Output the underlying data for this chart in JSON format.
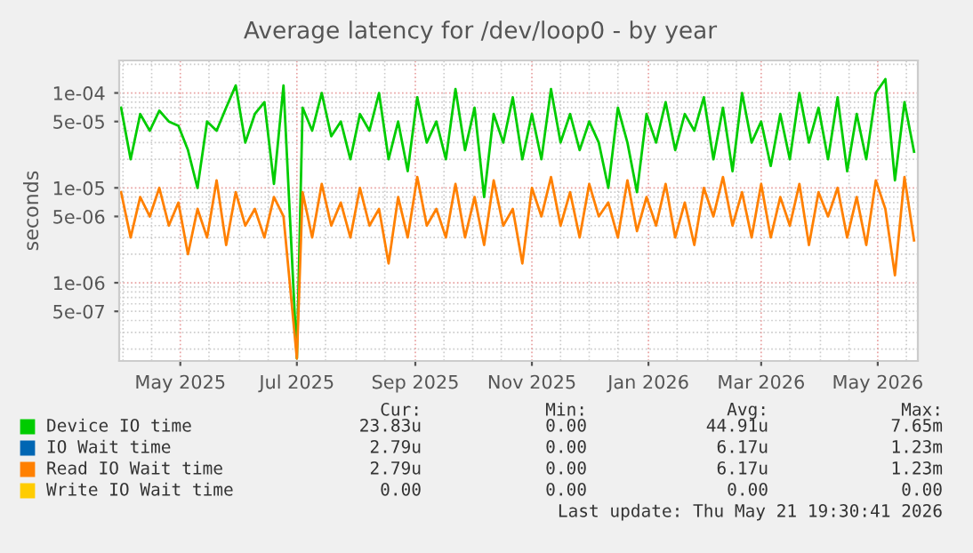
{
  "chart_data": {
    "type": "line",
    "title": "Average latency for /dev/loop0 - by year",
    "ylabel": "seconds",
    "log": "y",
    "grid": true,
    "legend": "bottom",
    "x": [
      "2025-03-31",
      "2025-04-05",
      "2025-04-10",
      "2025-04-15",
      "2025-04-20",
      "2025-04-25",
      "2025-04-30",
      "2025-05-05",
      "2025-05-10",
      "2025-05-15",
      "2025-05-20",
      "2025-05-25",
      "2025-05-30",
      "2025-06-04",
      "2025-06-09",
      "2025-06-14",
      "2025-06-19",
      "2025-06-24",
      "2025-07-01",
      "2025-07-04",
      "2025-07-09",
      "2025-07-14",
      "2025-07-19",
      "2025-07-24",
      "2025-07-29",
      "2025-08-03",
      "2025-08-08",
      "2025-08-13",
      "2025-08-18",
      "2025-08-23",
      "2025-08-28",
      "2025-09-02",
      "2025-09-07",
      "2025-09-12",
      "2025-09-17",
      "2025-09-22",
      "2025-09-27",
      "2025-10-02",
      "2025-10-07",
      "2025-10-12",
      "2025-10-17",
      "2025-10-22",
      "2025-10-27",
      "2025-11-01",
      "2025-11-06",
      "2025-11-11",
      "2025-11-16",
      "2025-11-21",
      "2025-11-26",
      "2025-12-01",
      "2025-12-06",
      "2025-12-11",
      "2025-12-16",
      "2025-12-21",
      "2025-12-26",
      "2025-12-31",
      "2026-01-05",
      "2026-01-10",
      "2026-01-15",
      "2026-01-20",
      "2026-01-25",
      "2026-01-30",
      "2026-02-04",
      "2026-02-09",
      "2026-02-14",
      "2026-02-19",
      "2026-02-24",
      "2026-03-01",
      "2026-03-06",
      "2026-03-11",
      "2026-03-16",
      "2026-03-21",
      "2026-03-26",
      "2026-03-31",
      "2026-04-05",
      "2026-04-10",
      "2026-04-15",
      "2026-04-20",
      "2026-04-25",
      "2026-04-30",
      "2026-05-05",
      "2026-05-10",
      "2026-05-15",
      "2026-05-20"
    ],
    "series": [
      {
        "name": "Device IO time",
        "color": "#00cc00",
        "values": [
          7e-05,
          2e-05,
          6e-05,
          4e-05,
          6.5e-05,
          5e-05,
          4.5e-05,
          2.5e-05,
          1e-05,
          5e-05,
          4e-05,
          7e-05,
          0.00012,
          3e-05,
          6e-05,
          8e-05,
          1.1e-05,
          0.00012,
          1.6e-07,
          7e-05,
          4e-05,
          0.0001,
          3.5e-05,
          5e-05,
          2e-05,
          6e-05,
          4e-05,
          0.0001,
          2e-05,
          5e-05,
          1.5e-05,
          9e-05,
          3e-05,
          5e-05,
          2e-05,
          0.00011,
          2.5e-05,
          7e-05,
          8e-06,
          6e-05,
          3e-05,
          9e-05,
          2e-05,
          6e-05,
          2e-05,
          0.00011,
          3e-05,
          6e-05,
          2.5e-05,
          5e-05,
          3e-05,
          1e-05,
          7e-05,
          3e-05,
          9e-06,
          6e-05,
          3e-05,
          8e-05,
          2.5e-05,
          6e-05,
          4e-05,
          9e-05,
          2e-05,
          7e-05,
          1.5e-05,
          0.0001,
          3e-05,
          5e-05,
          1.7e-05,
          6e-05,
          2e-05,
          0.0001,
          3e-05,
          7e-05,
          2e-05,
          9e-05,
          1.5e-05,
          6e-05,
          2e-05,
          0.0001,
          0.00014,
          1.2e-05,
          8e-05,
          2.4e-05
        ]
      },
      {
        "name": "IO Wait time",
        "color": "#0066b3",
        "values": [
          null,
          null,
          null,
          null,
          null,
          null,
          null,
          null,
          null,
          null,
          null,
          null,
          null,
          null,
          null,
          null,
          null,
          null,
          null,
          null,
          null,
          null,
          null,
          null,
          null,
          null,
          null,
          null,
          null,
          null,
          null,
          null,
          null,
          null,
          null,
          null,
          null,
          null,
          null,
          null,
          null,
          null,
          null,
          null,
          null,
          null,
          null,
          null,
          null,
          null,
          null,
          null,
          null,
          null,
          null,
          null,
          null,
          null,
          null,
          null,
          null,
          null,
          null,
          null,
          null,
          null,
          null,
          null,
          null,
          null,
          null,
          null,
          null,
          null,
          null,
          null,
          null,
          null,
          null,
          null,
          null,
          null,
          null,
          null
        ]
      },
      {
        "name": "Read IO Wait time",
        "color": "#ff8000",
        "values": [
          9e-06,
          3e-06,
          8e-06,
          5e-06,
          1e-05,
          4e-06,
          7e-06,
          2e-06,
          6e-06,
          3e-06,
          1.2e-05,
          2.5e-06,
          9e-06,
          4e-06,
          6e-06,
          3e-06,
          8e-06,
          5e-06,
          1.6e-07,
          9e-06,
          3e-06,
          1.1e-05,
          4e-06,
          7e-06,
          3e-06,
          1e-05,
          4e-06,
          6e-06,
          1.6e-06,
          8e-06,
          3e-06,
          1.3e-05,
          4e-06,
          6e-06,
          3e-06,
          1.1e-05,
          3e-06,
          8e-06,
          2.5e-06,
          1.2e-05,
          4e-06,
          6e-06,
          1.6e-06,
          1e-05,
          5e-06,
          1.3e-05,
          4e-06,
          9e-06,
          3e-06,
          1.1e-05,
          5e-06,
          7e-06,
          3e-06,
          1.2e-05,
          3.5e-06,
          8e-06,
          4e-06,
          1.1e-05,
          3e-06,
          7e-06,
          2.5e-06,
          1e-05,
          5e-06,
          1.3e-05,
          4e-06,
          9e-06,
          3e-06,
          1.1e-05,
          3e-06,
          8e-06,
          4e-06,
          1.1e-05,
          2.5e-06,
          9e-06,
          5e-06,
          1e-05,
          3e-06,
          8e-06,
          2.5e-06,
          1.2e-05,
          6e-06,
          1.2e-06,
          1.3e-05,
          2.8e-06
        ]
      },
      {
        "name": "Write IO Wait time",
        "color": "#ffcc00",
        "values": [
          null,
          null,
          null,
          null,
          null,
          null,
          null,
          null,
          null,
          null,
          null,
          null,
          null,
          null,
          null,
          null,
          null,
          null,
          null,
          null,
          null,
          null,
          null,
          null,
          null,
          null,
          null,
          null,
          null,
          null,
          null,
          null,
          null,
          null,
          null,
          null,
          null,
          null,
          null,
          null,
          null,
          null,
          null,
          null,
          null,
          null,
          null,
          null,
          null,
          null,
          null,
          null,
          null,
          null,
          null,
          null,
          null,
          null,
          null,
          null,
          null,
          null,
          null,
          null,
          null,
          null,
          null,
          null,
          null,
          null,
          null,
          null,
          null,
          null,
          null,
          null,
          null,
          null,
          null,
          null,
          null,
          null,
          null,
          null
        ]
      }
    ],
    "xlim": [
      "2025-03-30",
      "2026-05-22"
    ],
    "xticks": [
      {
        "value": "2025-05-01",
        "label": "May 2025"
      },
      {
        "value": "2025-07-01",
        "label": "Jul 2025"
      },
      {
        "value": "2025-09-01",
        "label": "Sep 2025"
      },
      {
        "value": "2025-11-01",
        "label": "Nov 2025"
      },
      {
        "value": "2026-01-01",
        "label": "Jan 2026"
      },
      {
        "value": "2026-03-01",
        "label": "Mar 2026"
      },
      {
        "value": "2026-05-01",
        "label": "May 2026"
      }
    ],
    "ylim": [
      1.5e-07,
      0.00022
    ],
    "yticks": [
      {
        "value": 5e-07,
        "label": "5e-07"
      },
      {
        "value": 1e-06,
        "label": "1e-06"
      },
      {
        "value": 5e-06,
        "label": "5e-06"
      },
      {
        "value": 1e-05,
        "label": "1e-05"
      },
      {
        "value": 5e-05,
        "label": "5e-05"
      },
      {
        "value": 0.0001,
        "label": "1e-04"
      }
    ],
    "annotations": [
      "Cur:",
      "Min:",
      "Avg:",
      "Max:",
      "23.83u",
      "0.00",
      "44.91u",
      "7.65m",
      "2.79u",
      "0.00",
      "6.17u",
      "1.23m",
      "2.79u",
      "0.00",
      "6.17u",
      "1.23m",
      "0.00",
      "0.00",
      "0.00",
      "0.00",
      "Last update: Thu May 21 19:30:41 2026"
    ]
  }
}
